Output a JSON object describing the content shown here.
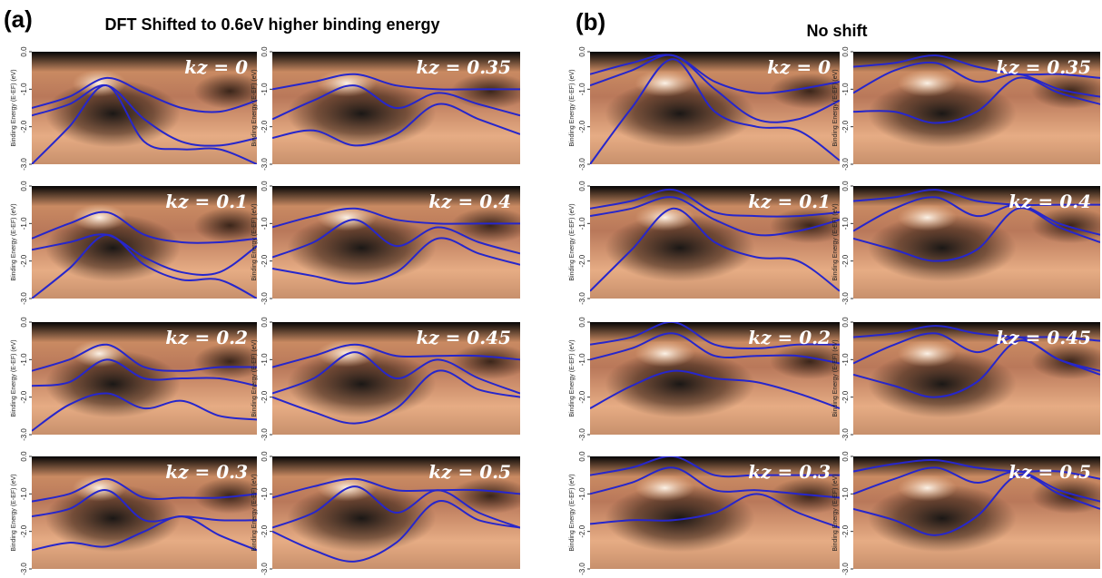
{
  "header": {
    "a_label": "(a)",
    "a_title": "DFT Shifted to 0.6eV higher binding energy",
    "b_label": "(b)",
    "b_title": "No shift"
  },
  "chart_data": [
    {
      "type": "line",
      "title": "kz = 0",
      "ylabel": "Binding Energy (E-EF) (eV)",
      "ylim": [
        -3,
        0
      ],
      "yticks": [
        {
          "value": 0,
          "label": "0.0"
        },
        {
          "value": -1,
          "label": "-1.0"
        },
        {
          "value": -2,
          "label": "-2.0"
        },
        {
          "value": -3,
          "label": "-3.0"
        }
      ],
      "categories": [
        null,
        null,
        null,
        null,
        null,
        null,
        null
      ],
      "color": "#2626cc",
      "series": [
        {
          "values": [
            -1.5,
            -1.2,
            -0.7,
            -1.1,
            -1.5,
            -1.6,
            -1.3
          ]
        },
        {
          "values": [
            -1.7,
            -1.4,
            -0.9,
            -1.8,
            -2.4,
            -2.5,
            -2.3
          ]
        },
        {
          "values": [
            -3.0,
            -2.0,
            -0.9,
            -2.4,
            -2.6,
            -2.6,
            -3.0
          ]
        }
      ]
    },
    {
      "type": "line",
      "title": "kz = 0.35",
      "ylabel": "Binding Energy (E-EF) (eV)",
      "ylim": [
        -3,
        0
      ],
      "yticks": [
        {
          "value": 0,
          "label": "0.0"
        },
        {
          "value": -1,
          "label": "-1.0"
        },
        {
          "value": -2,
          "label": "-2.0"
        },
        {
          "value": -3,
          "label": "-3.0"
        }
      ],
      "categories": [
        null,
        null,
        null,
        null,
        null,
        null,
        null
      ],
      "color": "#2626cc",
      "series": [
        {
          "values": [
            -1.0,
            -0.8,
            -0.6,
            -0.9,
            -1.0,
            -1.0,
            -1.0
          ]
        },
        {
          "values": [
            -1.8,
            -1.3,
            -0.9,
            -1.5,
            -1.1,
            -1.4,
            -1.7
          ]
        },
        {
          "values": [
            -2.3,
            -2.1,
            -2.5,
            -2.2,
            -1.4,
            -1.8,
            -2.2
          ]
        }
      ]
    },
    {
      "type": "line",
      "title": "kz = 0.1",
      "ylabel": "Binding Energy (E-EF) (eV)",
      "ylim": [
        -3,
        0
      ],
      "yticks": [
        {
          "value": 0,
          "label": "0.0"
        },
        {
          "value": -1,
          "label": "-1.0"
        },
        {
          "value": -2,
          "label": "-2.0"
        },
        {
          "value": -3,
          "label": "-3.0"
        }
      ],
      "categories": [
        null,
        null,
        null,
        null,
        null,
        null,
        null
      ],
      "color": "#2626cc",
      "series": [
        {
          "values": [
            -1.4,
            -1.0,
            -0.7,
            -1.3,
            -1.5,
            -1.5,
            -1.4
          ]
        },
        {
          "values": [
            -1.7,
            -1.5,
            -1.3,
            -1.9,
            -2.3,
            -2.3,
            -1.6
          ]
        },
        {
          "values": [
            -3.0,
            -2.2,
            -1.3,
            -2.1,
            -2.5,
            -2.5,
            -3.0
          ]
        }
      ]
    },
    {
      "type": "line",
      "title": "kz = 0.4",
      "ylabel": "Binding Energy (E-EF) (eV)",
      "ylim": [
        -3,
        0
      ],
      "yticks": [
        {
          "value": 0,
          "label": "0.0"
        },
        {
          "value": -1,
          "label": "-1.0"
        },
        {
          "value": -2,
          "label": "-2.0"
        },
        {
          "value": -3,
          "label": "-3.0"
        }
      ],
      "categories": [
        null,
        null,
        null,
        null,
        null,
        null,
        null
      ],
      "color": "#2626cc",
      "series": [
        {
          "values": [
            -1.1,
            -0.8,
            -0.6,
            -0.9,
            -1.0,
            -1.0,
            -1.0
          ]
        },
        {
          "values": [
            -1.9,
            -1.5,
            -0.9,
            -1.6,
            -1.1,
            -1.5,
            -1.8
          ]
        },
        {
          "values": [
            -2.2,
            -2.4,
            -2.6,
            -2.3,
            -1.4,
            -1.8,
            -2.1
          ]
        }
      ]
    },
    {
      "type": "line",
      "title": "kz = 0.2",
      "ylabel": "Binding Energy (E-EF) (eV)",
      "ylim": [
        -3,
        0
      ],
      "yticks": [
        {
          "value": 0,
          "label": "0.0"
        },
        {
          "value": -1,
          "label": "-1.0"
        },
        {
          "value": -2,
          "label": "-2.0"
        },
        {
          "value": -3,
          "label": "-3.0"
        }
      ],
      "categories": [
        null,
        null,
        null,
        null,
        null,
        null,
        null
      ],
      "color": "#2626cc",
      "series": [
        {
          "values": [
            -1.3,
            -1.0,
            -0.6,
            -1.2,
            -1.3,
            -1.2,
            -1.2
          ]
        },
        {
          "values": [
            -1.7,
            -1.6,
            -1.0,
            -1.5,
            -1.5,
            -1.5,
            -1.7
          ]
        },
        {
          "values": [
            -2.9,
            -2.2,
            -1.9,
            -2.3,
            -2.1,
            -2.5,
            -2.6
          ]
        }
      ]
    },
    {
      "type": "line",
      "title": "kz = 0.45",
      "ylabel": "Binding Energy (E-EF) (eV)",
      "ylim": [
        -3,
        0
      ],
      "yticks": [
        {
          "value": 0,
          "label": "0.0"
        },
        {
          "value": -1,
          "label": "-1.0"
        },
        {
          "value": -2,
          "label": "-2.0"
        },
        {
          "value": -3,
          "label": "-3.0"
        }
      ],
      "categories": [
        null,
        null,
        null,
        null,
        null,
        null,
        null
      ],
      "color": "#2626cc",
      "series": [
        {
          "values": [
            -1.2,
            -0.9,
            -0.6,
            -0.9,
            -0.9,
            -0.9,
            -1.0
          ]
        },
        {
          "values": [
            -1.9,
            -1.5,
            -0.8,
            -1.5,
            -1.0,
            -1.5,
            -1.9
          ]
        },
        {
          "values": [
            -2.0,
            -2.4,
            -2.7,
            -2.3,
            -1.3,
            -1.8,
            -2.0
          ]
        }
      ]
    },
    {
      "type": "line",
      "title": "kz = 0.3",
      "ylabel": "Binding Energy (E-EF) (eV)",
      "ylim": [
        -3,
        0
      ],
      "yticks": [
        {
          "value": 0,
          "label": "0.0"
        },
        {
          "value": -1,
          "label": "-1.0"
        },
        {
          "value": -2,
          "label": "-2.0"
        },
        {
          "value": -3,
          "label": "-3.0"
        }
      ],
      "categories": [
        null,
        null,
        null,
        null,
        null,
        null,
        null
      ],
      "color": "#2626cc",
      "series": [
        {
          "values": [
            -1.2,
            -1.0,
            -0.6,
            -1.1,
            -1.1,
            -1.1,
            -1.0
          ]
        },
        {
          "values": [
            -1.6,
            -1.4,
            -0.9,
            -1.7,
            -1.6,
            -1.7,
            -1.7
          ]
        },
        {
          "values": [
            -2.5,
            -2.3,
            -2.4,
            -2.0,
            -1.6,
            -2.1,
            -2.5
          ]
        }
      ]
    },
    {
      "type": "line",
      "title": "kz = 0.5",
      "ylabel": "Binding Energy (E-EF) (eV)",
      "ylim": [
        -3,
        0
      ],
      "yticks": [
        {
          "value": 0,
          "label": "0.0"
        },
        {
          "value": -1,
          "label": "-1.0"
        },
        {
          "value": -2,
          "label": "-2.0"
        },
        {
          "value": -3,
          "label": "-3.0"
        }
      ],
      "categories": [
        null,
        null,
        null,
        null,
        null,
        null,
        null
      ],
      "color": "#2626cc",
      "series": [
        {
          "values": [
            -1.1,
            -0.8,
            -0.6,
            -0.9,
            -0.9,
            -0.9,
            -1.0
          ]
        },
        {
          "values": [
            -1.9,
            -1.5,
            -0.8,
            -1.5,
            -0.9,
            -1.5,
            -1.9
          ]
        },
        {
          "values": [
            -2.0,
            -2.5,
            -2.8,
            -2.3,
            -1.2,
            -1.7,
            -1.9
          ]
        }
      ]
    },
    {
      "type": "line",
      "title": "kz = 0",
      "ylabel": "Binding Energy (E-EF) (eV)",
      "ylim": [
        -3,
        0
      ],
      "yticks": [
        {
          "value": 0,
          "label": "0.0"
        },
        {
          "value": -1,
          "label": "-1.0"
        },
        {
          "value": -2,
          "label": "-2.0"
        },
        {
          "value": -3,
          "label": "-3.0"
        }
      ],
      "categories": [
        null,
        null,
        null,
        null,
        null,
        null,
        null
      ],
      "color": "#2626cc",
      "series": [
        {
          "values": [
            -0.6,
            -0.3,
            -0.1,
            -0.8,
            -1.1,
            -1.0,
            -0.8
          ]
        },
        {
          "values": [
            -0.9,
            -0.5,
            -0.1,
            -1.0,
            -1.8,
            -1.8,
            -1.3
          ]
        },
        {
          "values": [
            -3.0,
            -1.5,
            -0.2,
            -1.6,
            -2.0,
            -2.1,
            -2.9
          ]
        }
      ]
    },
    {
      "type": "line",
      "title": "kz = 0.35",
      "ylabel": "Binding Energy (E-EF) (eV)",
      "ylim": [
        -3,
        0
      ],
      "yticks": [
        {
          "value": 0,
          "label": "0.0"
        },
        {
          "value": -1,
          "label": "-1.0"
        },
        {
          "value": -2,
          "label": "-2.0"
        },
        {
          "value": -3,
          "label": "-3.0"
        }
      ],
      "categories": [
        null,
        null,
        null,
        null,
        null,
        null,
        null
      ],
      "color": "#2626cc",
      "series": [
        {
          "values": [
            -0.4,
            -0.3,
            -0.1,
            -0.4,
            -0.6,
            -0.6,
            -0.7
          ]
        },
        {
          "values": [
            -1.1,
            -0.5,
            -0.3,
            -0.8,
            -0.6,
            -1.0,
            -1.2
          ]
        },
        {
          "values": [
            -1.6,
            -1.6,
            -1.9,
            -1.6,
            -0.7,
            -1.1,
            -1.4
          ]
        }
      ]
    },
    {
      "type": "line",
      "title": "kz = 0.1",
      "ylabel": "Binding Energy (E-EF) (eV)",
      "ylim": [
        -3,
        0
      ],
      "yticks": [
        {
          "value": 0,
          "label": "0.0"
        },
        {
          "value": -1,
          "label": "-1.0"
        },
        {
          "value": -2,
          "label": "-2.0"
        },
        {
          "value": -3,
          "label": "-3.0"
        }
      ],
      "categories": [
        null,
        null,
        null,
        null,
        null,
        null,
        null
      ],
      "color": "#2626cc",
      "series": [
        {
          "values": [
            -0.6,
            -0.4,
            -0.1,
            -0.7,
            -0.8,
            -0.8,
            -0.7
          ]
        },
        {
          "values": [
            -0.8,
            -0.6,
            -0.3,
            -0.9,
            -1.3,
            -1.2,
            -0.9
          ]
        },
        {
          "values": [
            -2.8,
            -1.7,
            -0.6,
            -1.5,
            -1.9,
            -2.0,
            -2.8
          ]
        }
      ]
    },
    {
      "type": "line",
      "title": "kz = 0.4",
      "ylabel": "Binding Energy (E-EF) (eV)",
      "ylim": [
        -3,
        0
      ],
      "yticks": [
        {
          "value": 0,
          "label": "0.0"
        },
        {
          "value": -1,
          "label": "-1.0"
        },
        {
          "value": -2,
          "label": "-2.0"
        },
        {
          "value": -3,
          "label": "-3.0"
        }
      ],
      "categories": [
        null,
        null,
        null,
        null,
        null,
        null,
        null
      ],
      "color": "#2626cc",
      "series": [
        {
          "values": [
            -0.4,
            -0.3,
            -0.1,
            -0.4,
            -0.5,
            -0.5,
            -0.5
          ]
        },
        {
          "values": [
            -1.2,
            -0.6,
            -0.3,
            -0.8,
            -0.5,
            -1.0,
            -1.3
          ]
        },
        {
          "values": [
            -1.4,
            -1.7,
            -2.0,
            -1.7,
            -0.6,
            -1.1,
            -1.5
          ]
        }
      ]
    },
    {
      "type": "line",
      "title": "kz = 0.2",
      "ylabel": "Binding Energy (E-EF) (eV)",
      "ylim": [
        -3,
        0
      ],
      "yticks": [
        {
          "value": 0,
          "label": "0.0"
        },
        {
          "value": -1,
          "label": "-1.0"
        },
        {
          "value": -2,
          "label": "-2.0"
        },
        {
          "value": -3,
          "label": "-3.0"
        }
      ],
      "categories": [
        null,
        null,
        null,
        null,
        null,
        null,
        null
      ],
      "color": "#2626cc",
      "series": [
        {
          "values": [
            -0.6,
            -0.4,
            0.0,
            -0.6,
            -0.7,
            -0.6,
            -0.6
          ]
        },
        {
          "values": [
            -1.0,
            -0.7,
            -0.3,
            -0.9,
            -0.9,
            -0.9,
            -1.1
          ]
        },
        {
          "values": [
            -2.3,
            -1.7,
            -1.3,
            -1.5,
            -1.6,
            -1.9,
            -2.3
          ]
        }
      ]
    },
    {
      "type": "line",
      "title": "kz = 0.45",
      "ylabel": "Binding Energy (E-EF) (eV)",
      "ylim": [
        -3,
        0
      ],
      "yticks": [
        {
          "value": 0,
          "label": "0.0"
        },
        {
          "value": -1,
          "label": "-1.0"
        },
        {
          "value": -2,
          "label": "-2.0"
        },
        {
          "value": -3,
          "label": "-3.0"
        }
      ],
      "categories": [
        null,
        null,
        null,
        null,
        null,
        null,
        null
      ],
      "color": "#2626cc",
      "series": [
        {
          "values": [
            -0.4,
            -0.3,
            -0.1,
            -0.3,
            -0.4,
            -0.4,
            -0.5
          ]
        },
        {
          "values": [
            -1.1,
            -0.6,
            -0.3,
            -0.8,
            -0.4,
            -1.0,
            -1.3
          ]
        },
        {
          "values": [
            -1.4,
            -1.7,
            -2.0,
            -1.6,
            -0.5,
            -1.0,
            -1.4
          ]
        }
      ]
    },
    {
      "type": "line",
      "title": "kz = 0.3",
      "ylabel": "Binding Energy (E-EF) (eV)",
      "ylim": [
        -3,
        0
      ],
      "yticks": [
        {
          "value": 0,
          "label": "0.0"
        },
        {
          "value": -1,
          "label": "-1.0"
        },
        {
          "value": -2,
          "label": "-2.0"
        },
        {
          "value": -3,
          "label": "-3.0"
        }
      ],
      "categories": [
        null,
        null,
        null,
        null,
        null,
        null,
        null
      ],
      "color": "#2626cc",
      "series": [
        {
          "values": [
            -0.5,
            -0.3,
            0.0,
            -0.5,
            -0.5,
            -0.5,
            -0.5
          ]
        },
        {
          "values": [
            -1.0,
            -0.7,
            -0.3,
            -0.9,
            -0.9,
            -1.0,
            -1.1
          ]
        },
        {
          "values": [
            -1.8,
            -1.7,
            -1.7,
            -1.5,
            -1.0,
            -1.5,
            -1.9
          ]
        }
      ]
    },
    {
      "type": "line",
      "title": "kz = 0.5",
      "ylabel": "Binding Energy (E-EF) (eV)",
      "ylim": [
        -3,
        0
      ],
      "yticks": [
        {
          "value": 0,
          "label": "0.0"
        },
        {
          "value": -1,
          "label": "-1.0"
        },
        {
          "value": -2,
          "label": "-2.0"
        },
        {
          "value": -3,
          "label": "-3.0"
        }
      ],
      "categories": [
        null,
        null,
        null,
        null,
        null,
        null,
        null
      ],
      "color": "#2626cc",
      "series": [
        {
          "values": [
            -0.4,
            -0.2,
            -0.1,
            -0.3,
            -0.4,
            -0.4,
            -0.6
          ]
        },
        {
          "values": [
            -1.0,
            -0.6,
            -0.3,
            -0.7,
            -0.4,
            -0.9,
            -1.2
          ]
        },
        {
          "values": [
            -1.4,
            -1.7,
            -2.1,
            -1.6,
            -0.5,
            -1.0,
            -1.4
          ]
        }
      ]
    }
  ]
}
